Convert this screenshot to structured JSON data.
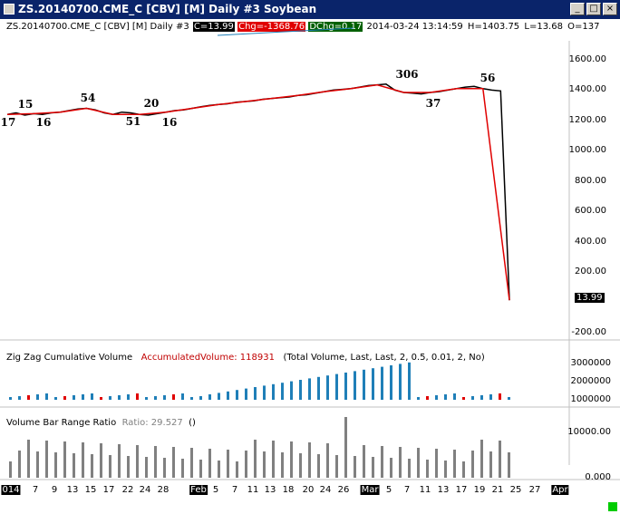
{
  "window": {
    "title": "ZS.20140700.CME_C [CBV] [M]  Daily  #3  Soybean",
    "minimize_glyph": "_",
    "maximize_glyph": "□",
    "close_glyph": "×"
  },
  "header": {
    "symbol": "ZS.20140700.CME_C [CBV] [M]  Daily  #3",
    "close": "C=13.99",
    "change": "Chg=-1368.76",
    "dchange": "DChg=0.17",
    "datetime": "2014-03-24 13:14:59",
    "high": "H=1403.75",
    "low": "L=13.68",
    "open": "O=137"
  },
  "colors": {
    "price": "#000000",
    "zigzag": "#e00000",
    "volume_up": "#1f7fb8",
    "volume_down": "#e00000",
    "ratio": "#808080"
  },
  "price_axis": [
    "1600.00",
    "1400.00",
    "1200.00",
    "1000.00",
    "800.00",
    "600.00",
    "400.00",
    "200.00",
    "-200.00"
  ],
  "last_value": "13.99",
  "pivots": [
    "17",
    "15",
    "16",
    "54",
    "51",
    "20",
    "16",
    "306",
    "37",
    "56"
  ],
  "zigzag_panel": {
    "name": "Zig Zag Cumulative Volume",
    "value_label": "AccumulatedVolume: 118931",
    "params": "(Total Volume, Last, Last, 2, 0.5, 0.01, 2, No)",
    "axis": [
      "3000000",
      "2000000",
      "1000000"
    ]
  },
  "ratio_panel": {
    "name": "Volume Bar Range Ratio",
    "value_label": "Ratio: 29.527",
    "params": "()",
    "axis": [
      "10000.00",
      "0.000"
    ]
  },
  "x_axis": [
    "014",
    "7",
    "9",
    "13",
    "15",
    "17",
    "22",
    "24",
    "28",
    "Feb",
    "5",
    "7",
    "11",
    "13",
    "18",
    "20",
    "24",
    "26",
    "Mar",
    "5",
    "7",
    "11",
    "13",
    "17",
    "19",
    "21",
    "25",
    "27",
    "Apr"
  ],
  "chart_data": {
    "type": "line",
    "series": [
      {
        "values": [
          1240,
          1250,
          1235,
          1245,
          1240,
          1250,
          1255,
          1265,
          1275,
          1280,
          1270,
          1250,
          1240,
          1255,
          1250,
          1240,
          1235,
          1245,
          1255,
          1265,
          1270,
          1280,
          1290,
          1300,
          1305,
          1310,
          1320,
          1325,
          1330,
          1340,
          1345,
          1350,
          1355,
          1365,
          1370,
          1380,
          1390,
          1400,
          1405,
          1410,
          1420,
          1430,
          1435,
          1440,
          1400,
          1385,
          1380,
          1375,
          1385,
          1390,
          1400,
          1410,
          1420,
          1425,
          1410,
          1400,
          1395,
          13.99
        ]
      }
    ],
    "ylim": [
      -200,
      1600
    ]
  }
}
